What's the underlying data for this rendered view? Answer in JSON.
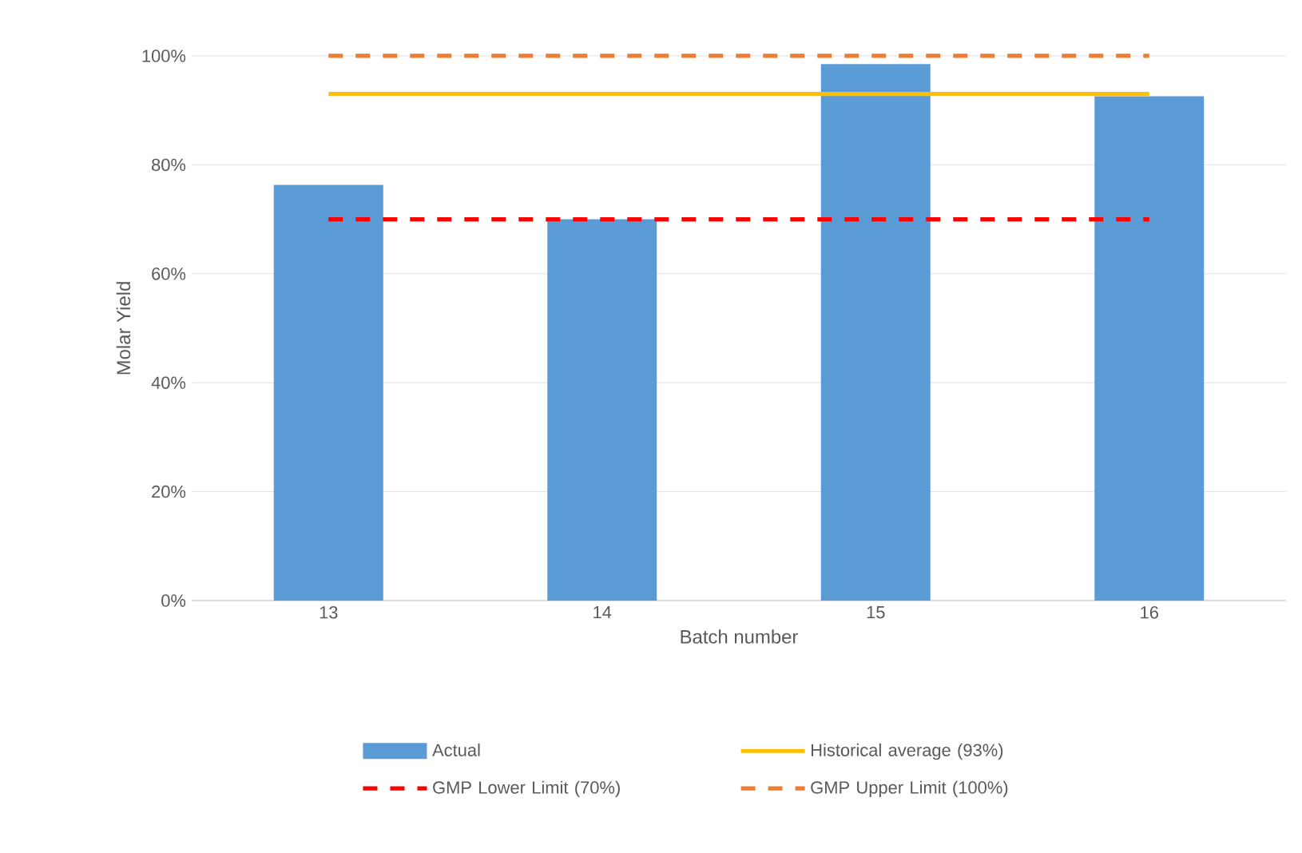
{
  "chart_data": {
    "type": "bar",
    "xlabel": "Batch number",
    "ylabel": "Molar Yield",
    "categories": [
      "13",
      "14",
      "15",
      "16"
    ],
    "series": [
      {
        "name": "Actual",
        "color": "#5b9bd5",
        "values": [
          76.3,
          70,
          98.5,
          92.6
        ]
      },
      {
        "name": "Historical average (93%)",
        "type": "line",
        "color": "#ffc000",
        "line_style": "solid",
        "values": [
          93,
          93,
          93,
          93
        ]
      },
      {
        "name": "GMP Lower Limit (70%)",
        "type": "line",
        "color": "#ff0000",
        "line_style": "dashed",
        "values": [
          70,
          70,
          70,
          70
        ]
      },
      {
        "name": "GMP Upper Limit (100%)",
        "type": "line",
        "color": "#ed7d31",
        "line_style": "dashed",
        "values": [
          100,
          100,
          100,
          100
        ]
      }
    ],
    "ylim": [
      0,
      100
    ],
    "yticks": [
      {
        "value": 0,
        "label": "0%"
      },
      {
        "value": 20,
        "label": "20%"
      },
      {
        "value": 40,
        "label": "40%"
      },
      {
        "value": 60,
        "label": "60%"
      },
      {
        "value": 80,
        "label": "80%"
      },
      {
        "value": 100,
        "label": "100%"
      }
    ],
    "grid": "y",
    "legend": "bottom",
    "marker": "none"
  }
}
